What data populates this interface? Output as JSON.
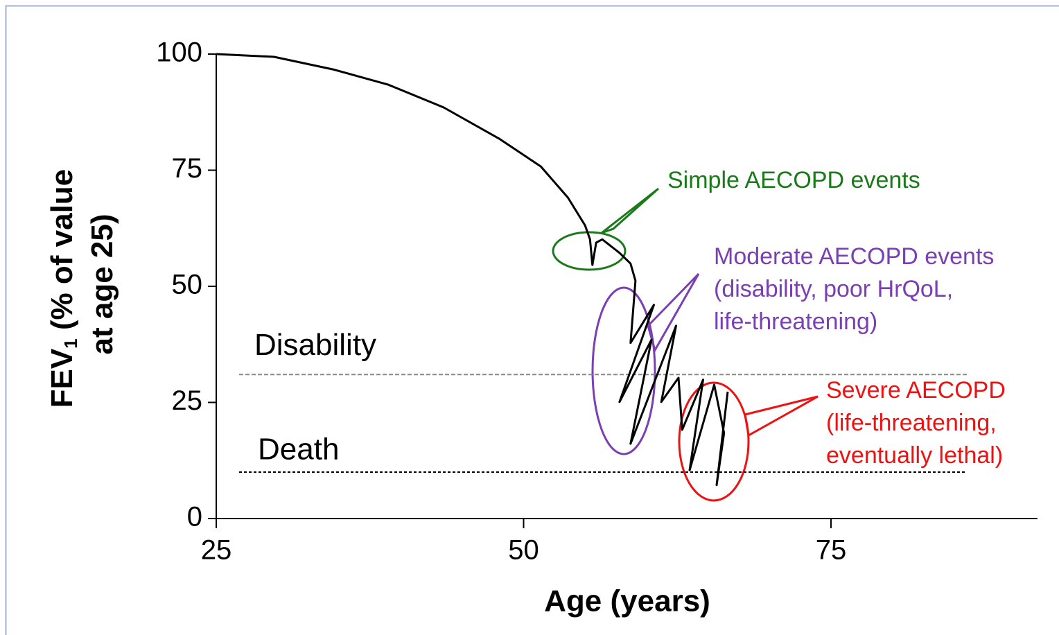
{
  "chart_data": {
    "type": "line",
    "xlabel": "Age (years)",
    "ylabel": {
      "main": "FEV",
      "sub": "1",
      "rest": " (% of value",
      "line2": "at age 25)"
    },
    "xlim": [
      25,
      92
    ],
    "ylim": [
      0,
      100
    ],
    "xticks": [
      25,
      50,
      75
    ],
    "yticks": [
      0,
      25,
      50,
      75,
      100
    ],
    "color": "#000000",
    "x": [
      25,
      29.7,
      34.5,
      39,
      43.5,
      48,
      51.4,
      53.6,
      55,
      55.4,
      55.6,
      55.9,
      56.4,
      57.8,
      58.7,
      59.1,
      58.7,
      60.6,
      57.8,
      60.4,
      58.7,
      62.4,
      61.2,
      62.6,
      62.9,
      64.6,
      63.5,
      65.5,
      66.3,
      65.7,
      66.6
    ],
    "values": [
      100,
      99.4,
      96.7,
      93.4,
      88.5,
      81.8,
      75.8,
      69.1,
      63.1,
      60.1,
      54.6,
      59.4,
      60.1,
      57.2,
      54.9,
      51.2,
      37.8,
      46,
      25.1,
      38.5,
      16.1,
      41.5,
      25.1,
      30.3,
      19.1,
      29.9,
      10.4,
      28.8,
      18.4,
      7.2,
      27.3
    ],
    "reference_lines": [
      {
        "label": "Disability",
        "value": 31
      },
      {
        "label": "Death",
        "value": 10
      }
    ],
    "annotations": [
      {
        "lines": [
          "Simple AECOPD events"
        ],
        "color": "#1a7a1a"
      },
      {
        "lines": [
          "Moderate AECOPD events",
          "(disability, poor HrQoL,",
          "life-threatening)"
        ],
        "color": "#7a3fb0"
      },
      {
        "lines": [
          "Severe AECOPD",
          "(life-threatening,",
          "eventually lethal)"
        ],
        "color": "#ee1111"
      }
    ]
  }
}
